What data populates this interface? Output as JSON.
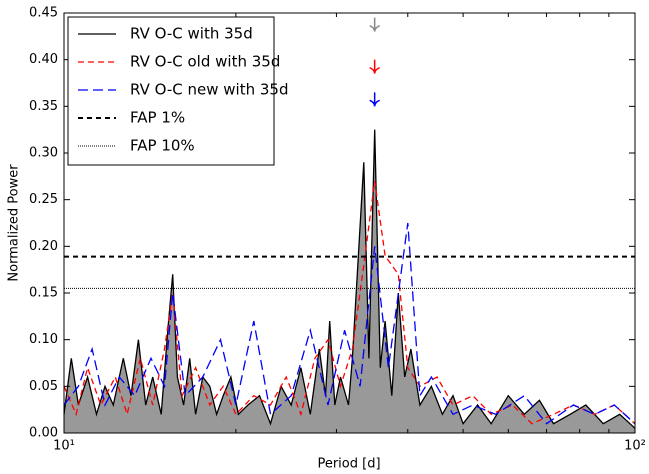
{
  "chart_data": {
    "type": "line",
    "xlabel": "Period [d]",
    "ylabel": "Normalized Power",
    "xscale": "log",
    "xlim": [
      10,
      100
    ],
    "xticks": [
      {
        "value": 10,
        "label": "10¹"
      },
      {
        "value": 100,
        "label": "10²"
      }
    ],
    "xminor_ticks": [
      20,
      30,
      40,
      50,
      60,
      70,
      80,
      90
    ],
    "ylim": [
      0,
      0.45
    ],
    "yticks": [
      {
        "value": 0,
        "label": "0.00"
      },
      {
        "value": 0.05,
        "label": "0.05"
      },
      {
        "value": 0.1,
        "label": "0.10"
      },
      {
        "value": 0.15,
        "label": "0.15"
      },
      {
        "value": 0.2,
        "label": "0.20"
      },
      {
        "value": 0.25,
        "label": "0.25"
      },
      {
        "value": 0.3,
        "label": "0.30"
      },
      {
        "value": 0.35,
        "label": "0.35"
      },
      {
        "value": 0.4,
        "label": "0.40"
      },
      {
        "value": 0.45,
        "label": "0.45"
      }
    ],
    "legend": "upper left",
    "series": [
      {
        "name": "RV O-C with 35d",
        "color": "#000000",
        "fill": "#999999",
        "dash": "solid",
        "x": [
          10,
          10.3,
          10.6,
          11,
          11.4,
          11.8,
          12.2,
          12.7,
          13.1,
          13.5,
          13.9,
          14.3,
          14.8,
          15.2,
          15.5,
          15.8,
          16.2,
          16.6,
          17,
          17.5,
          18,
          18.5,
          19,
          19.6,
          20.2,
          21,
          22,
          23,
          24,
          25,
          26,
          27,
          28,
          28.7,
          29.2,
          29.8,
          30.5,
          31.5,
          32,
          33.5,
          34.2,
          35,
          35.8,
          36.5,
          37.5,
          38.5,
          39.5,
          40.5,
          42,
          44,
          46,
          48,
          50,
          53,
          56,
          60,
          64,
          68,
          72,
          77,
          82,
          88,
          94,
          100
        ],
        "values": [
          0.02,
          0.08,
          0.03,
          0.06,
          0.02,
          0.05,
          0.03,
          0.08,
          0.04,
          0.1,
          0.03,
          0.06,
          0.02,
          0.11,
          0.17,
          0.06,
          0.03,
          0.08,
          0.02,
          0.06,
          0.05,
          0.02,
          0.04,
          0.06,
          0.02,
          0.03,
          0.04,
          0.01,
          0.05,
          0.03,
          0.07,
          0.02,
          0.09,
          0.04,
          0.12,
          0.03,
          0.06,
          0.03,
          0.08,
          0.29,
          0.08,
          0.325,
          0.07,
          0.12,
          0.04,
          0.15,
          0.06,
          0.09,
          0.03,
          0.05,
          0.02,
          0.04,
          0.01,
          0.03,
          0.01,
          0.04,
          0.02,
          0.035,
          0.01,
          0.02,
          0.03,
          0.01,
          0.02,
          0.005
        ]
      },
      {
        "name": "RV O-C old with 35d",
        "color": "#ff0000",
        "dash": "6,4",
        "x": [
          10,
          10.5,
          11,
          11.6,
          12.3,
          12.9,
          13.6,
          14.3,
          15,
          15.5,
          16.1,
          17,
          18,
          19,
          20,
          21.5,
          23,
          24.5,
          26,
          27.5,
          29,
          30.5,
          32,
          33.5,
          35,
          36.5,
          38.5,
          40,
          42,
          45,
          48,
          52,
          56,
          61,
          66,
          72,
          78,
          85,
          92,
          100
        ],
        "values": [
          0.05,
          0.02,
          0.07,
          0.03,
          0.06,
          0.02,
          0.08,
          0.03,
          0.09,
          0.15,
          0.04,
          0.07,
          0.03,
          0.05,
          0.02,
          0.04,
          0.03,
          0.06,
          0.02,
          0.08,
          0.1,
          0.05,
          0.09,
          0.18,
          0.27,
          0.19,
          0.17,
          0.07,
          0.05,
          0.06,
          0.03,
          0.04,
          0.02,
          0.03,
          0.01,
          0.02,
          0.03,
          0.02,
          0.03,
          0.01
        ]
      },
      {
        "name": "RV O-C new with 35d",
        "color": "#0000ff",
        "dash": "10,5",
        "x": [
          10,
          10.6,
          11.2,
          11.8,
          12.5,
          13.3,
          14.2,
          15,
          15.5,
          16.3,
          17.5,
          18.8,
          20,
          21.5,
          23,
          25,
          27,
          29,
          31,
          33,
          35,
          37,
          40,
          42,
          44,
          48,
          52,
          57,
          64,
          70,
          78,
          85,
          92,
          100
        ],
        "values": [
          0.03,
          0.05,
          0.09,
          0.03,
          0.06,
          0.04,
          0.08,
          0.05,
          0.15,
          0.04,
          0.06,
          0.1,
          0.03,
          0.12,
          0.02,
          0.04,
          0.11,
          0.03,
          0.11,
          0.05,
          0.2,
          0.07,
          0.225,
          0.04,
          0.06,
          0.02,
          0.03,
          0.02,
          0.04,
          0.01,
          0.03,
          0.02,
          0.03,
          0.01
        ]
      }
    ],
    "fap_lines": [
      {
        "name": "FAP 1%",
        "value": 0.189,
        "dash": "5,4",
        "width": 2
      },
      {
        "name": "FAP 10%",
        "value": 0.155,
        "dash": "1,1",
        "width": 1
      }
    ],
    "arrows": [
      {
        "x": 35,
        "y": 0.43,
        "color": "#888888"
      },
      {
        "x": 35,
        "y": 0.385,
        "color": "#ff0000"
      },
      {
        "x": 35,
        "y": 0.35,
        "color": "#0000ff"
      }
    ]
  }
}
